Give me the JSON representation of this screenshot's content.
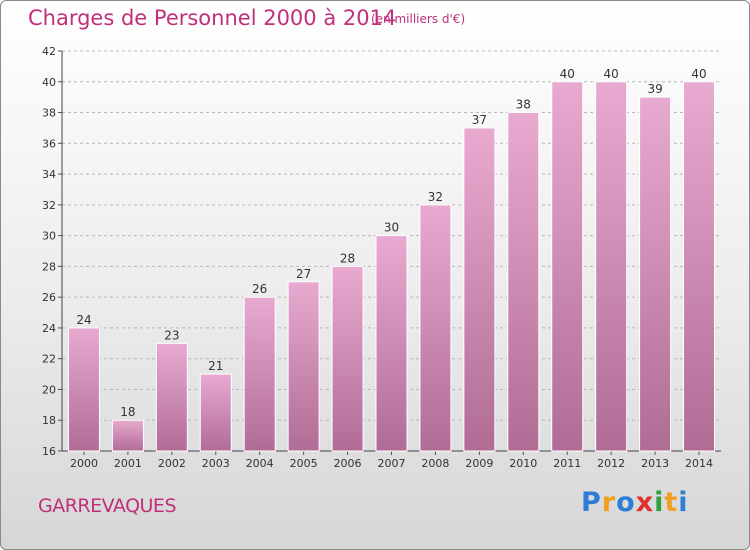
{
  "header": {
    "title": "Charges de Personnel 2000 à 2014",
    "unit": "(en milliers d'€)"
  },
  "footer": {
    "place": "GARREVAQUES",
    "logo": [
      "P",
      "r",
      "o",
      "x",
      "i",
      "t",
      "i"
    ]
  },
  "colors": {
    "accent": "#c0307a",
    "bar_top": "#e8aad0",
    "bar_bottom": "#b06c95",
    "logo": [
      "#2e7dd4",
      "#f0a020",
      "#2e7dd4",
      "#e03030",
      "#2ea040",
      "#f0a020",
      "#2e7dd4"
    ]
  },
  "chart_data": {
    "type": "bar",
    "categories": [
      "2000",
      "2001",
      "2002",
      "2003",
      "2004",
      "2005",
      "2006",
      "2007",
      "2008",
      "2009",
      "2010",
      "2011",
      "2012",
      "2013",
      "2014"
    ],
    "values": [
      24,
      18,
      23,
      21,
      26,
      27,
      28,
      30,
      32,
      37,
      38,
      40,
      40,
      39,
      40
    ],
    "title": "Charges de Personnel 2000 à 2014",
    "subtitle": "(en milliers d'€)",
    "xlabel": "",
    "ylabel": "",
    "ylim": [
      16,
      42
    ],
    "yticks": [
      16,
      18,
      20,
      22,
      24,
      26,
      28,
      30,
      32,
      34,
      36,
      38,
      40,
      42
    ],
    "grid": "horizontal-dashed",
    "legend": "none"
  }
}
